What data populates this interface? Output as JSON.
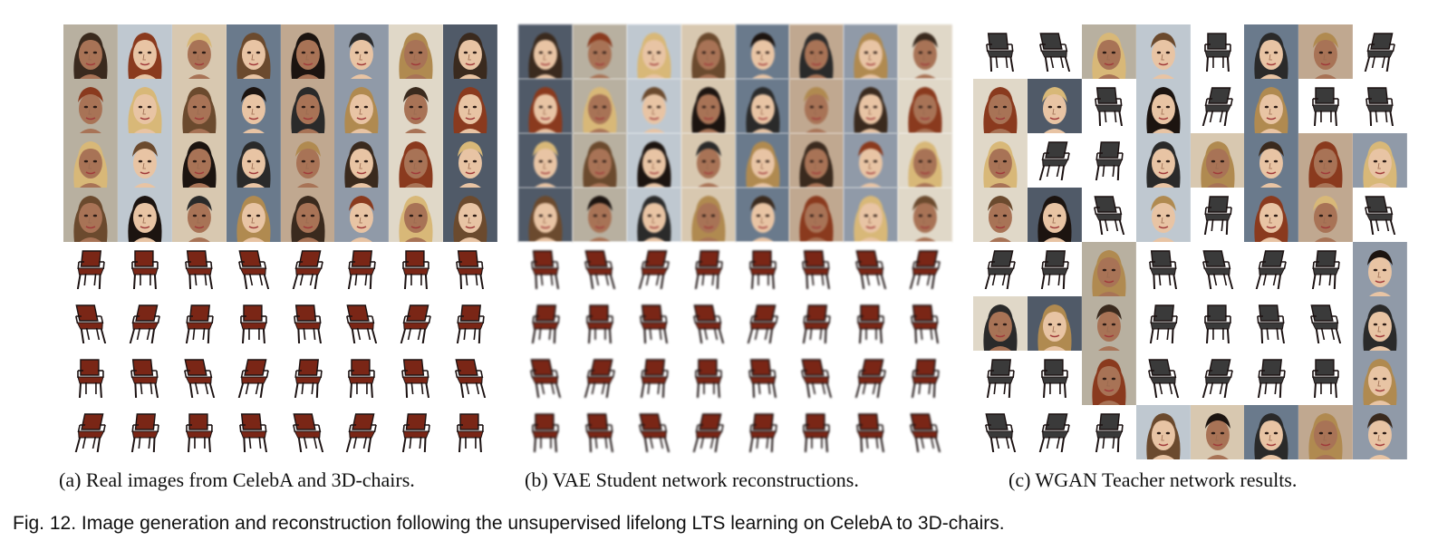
{
  "figure": {
    "subcaptions": {
      "a": "(a) Real images from CelebA and 3D-chairs.",
      "b": "(b) VAE Student network reconstructions.",
      "c": "(c) WGAN Teacher network results."
    },
    "caption": "Fig. 12. Image generation and reconstruction following the unsupervised lifelong LTS learning on CelebA to 3D-chairs."
  },
  "panels": {
    "a": {
      "name": "real-images-grid",
      "rows": [
        "face",
        "face",
        "face",
        "face",
        "chair",
        "chair",
        "chair",
        "chair"
      ],
      "blur": false
    },
    "b": {
      "name": "vae-reconstructions-grid",
      "rows": [
        "face",
        "face",
        "face",
        "face",
        "chair",
        "chair",
        "chair",
        "chair"
      ],
      "blur": true
    },
    "c": {
      "name": "wgan-results-grid",
      "blur": false,
      "cells": [
        [
          "chair",
          "chair",
          "face",
          "face",
          "chair",
          "face",
          "face",
          "chair"
        ],
        [
          "face",
          "face",
          "chair",
          "face",
          "chair",
          "face",
          "chair",
          "chair"
        ],
        [
          "face",
          "chair",
          "chair",
          "face",
          "face",
          "face",
          "face",
          "face"
        ],
        [
          "face",
          "face",
          "chair",
          "face",
          "chair",
          "face",
          "face",
          "chair"
        ],
        [
          "chair",
          "chair",
          "face",
          "chair",
          "chair",
          "chair",
          "chair",
          "face"
        ],
        [
          "face",
          "face",
          "face",
          "chair",
          "chair",
          "chair",
          "chair",
          "face"
        ],
        [
          "chair",
          "chair",
          "face",
          "chair",
          "chair",
          "chair",
          "chair",
          "face"
        ],
        [
          "chair",
          "chair",
          "chair",
          "face",
          "face",
          "face",
          "face",
          "face"
        ]
      ]
    }
  },
  "colors": {
    "chair_seat": "#7a2616",
    "chair_frame": "#1a1010",
    "chair_gray": "#3a3a3a",
    "skin_tones": [
      "#e8c4a4",
      "#d9a98a",
      "#c48f6e",
      "#a87356",
      "#8a5a40",
      "#f0d0b4"
    ],
    "hair_tones": [
      "#1c1410",
      "#3a2a1e",
      "#6b4a2e",
      "#b08a50",
      "#d8b878",
      "#2a2a2a",
      "#8a3a1e"
    ],
    "backgrounds": [
      "#bfc8d0",
      "#d8c8b0",
      "#6a7a8c",
      "#c0a890",
      "#909aa8",
      "#e0d8c8",
      "#505a68",
      "#b8b0a0"
    ]
  }
}
